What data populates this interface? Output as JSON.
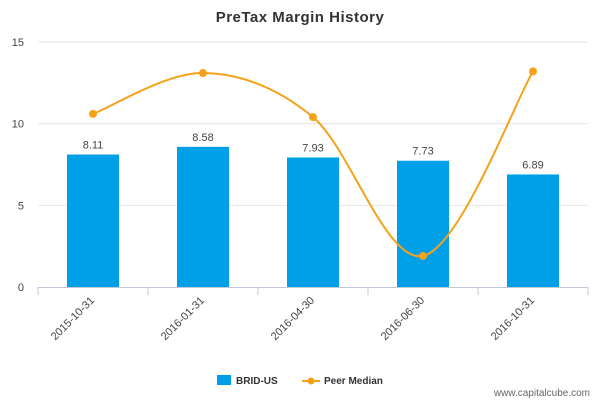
{
  "chart_data": {
    "type": "bar",
    "title": "PreTax Margin History",
    "categories": [
      "2015-10-31",
      "2016-01-31",
      "2016-04-30",
      "2016-06-30",
      "2016-10-31"
    ],
    "series": [
      {
        "name": "BRID-US",
        "kind": "bar",
        "color": "#00a0e8",
        "values": [
          8.11,
          8.58,
          7.93,
          7.73,
          6.89
        ],
        "labels": [
          "8.11",
          "8.58",
          "7.93",
          "7.73",
          "6.89"
        ]
      },
      {
        "name": "Peer Median",
        "kind": "line",
        "color": "#f5a21a",
        "values": [
          10.6,
          13.1,
          10.4,
          1.9,
          13.2
        ]
      }
    ],
    "yticks": [
      0,
      5,
      10,
      15
    ],
    "ylim": [
      0,
      15
    ],
    "xlabel": "",
    "ylabel": "",
    "legend": "bottom-center"
  },
  "watermark": "www.capitalcube.com"
}
